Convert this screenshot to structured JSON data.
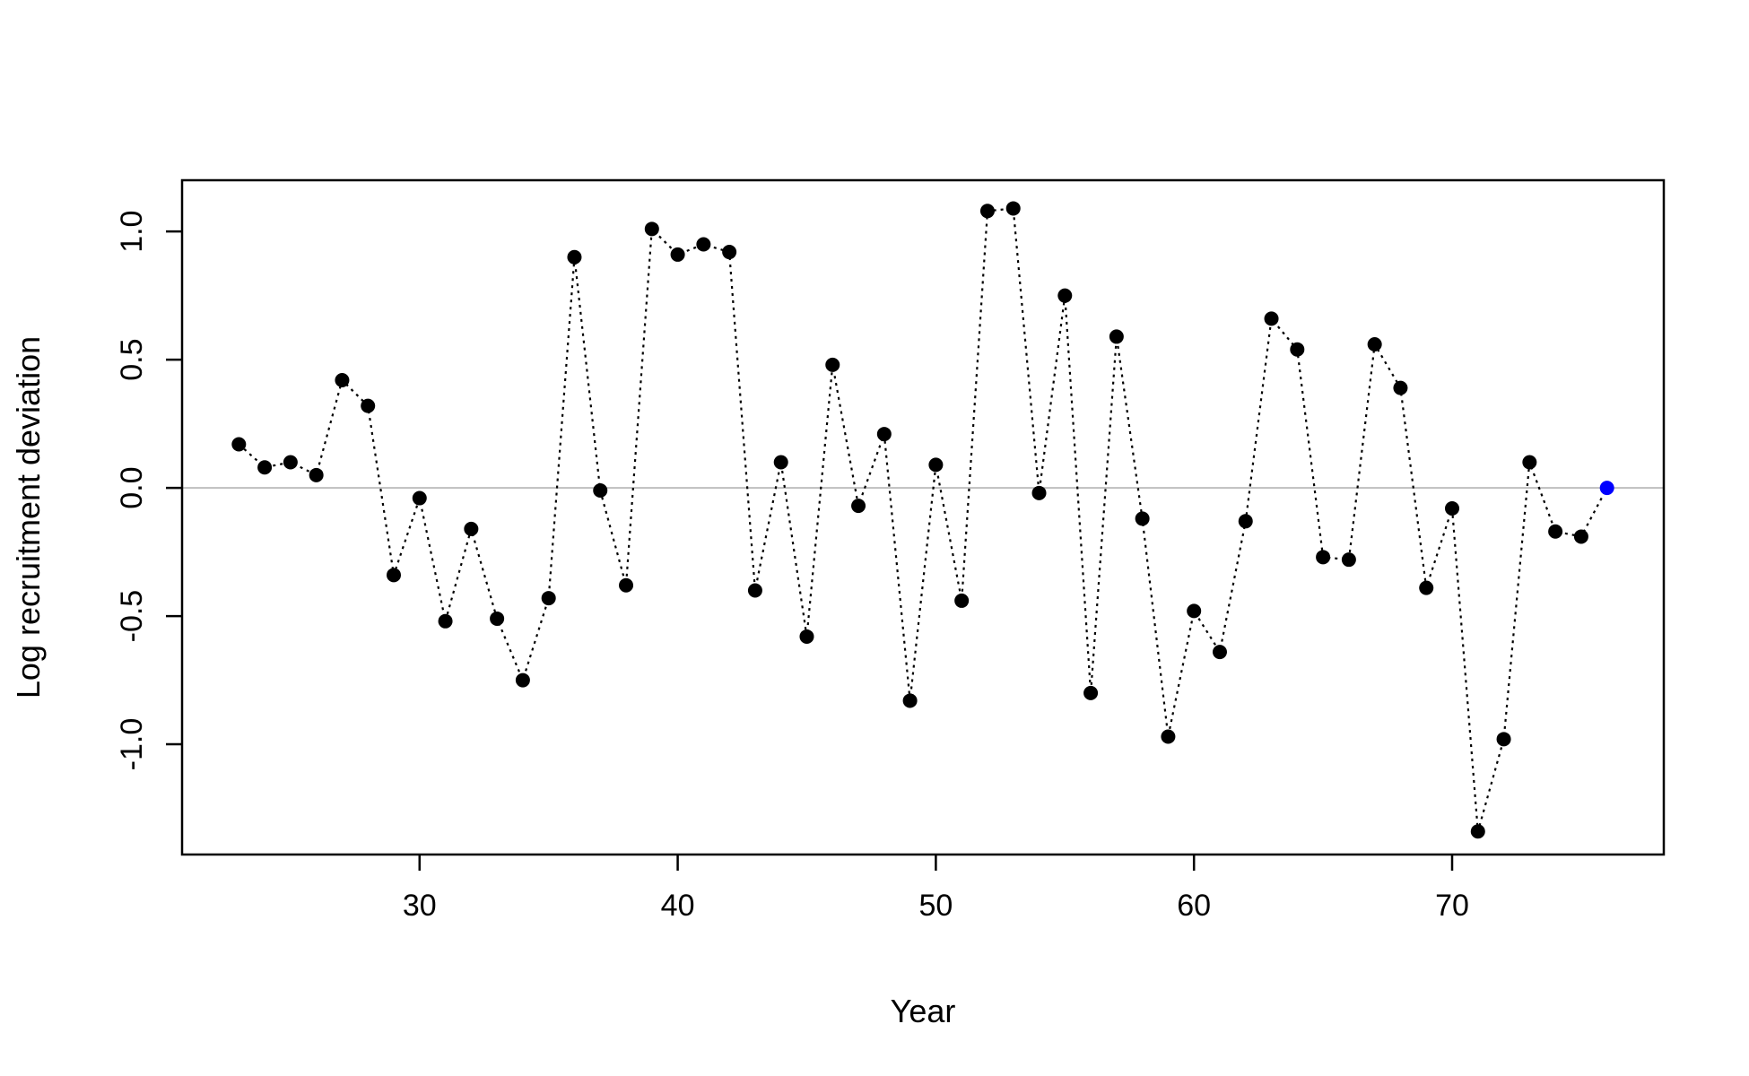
{
  "chart_data": {
    "type": "scatter",
    "title": "",
    "xlabel": "Year",
    "ylabel": "Log recruitment deviation",
    "xlim": [
      20.8,
      78.2
    ],
    "ylim": [
      -1.43,
      1.2
    ],
    "x_ticks": [
      30,
      40,
      50,
      60,
      70
    ],
    "x_tick_labels": [
      "30",
      "40",
      "50",
      "60",
      "70"
    ],
    "y_ticks": [
      -1.0,
      -0.5,
      0.0,
      0.5,
      1.0
    ],
    "y_tick_labels": [
      "-1.0",
      "-0.5",
      "0.0",
      "0.5",
      "1.0"
    ],
    "reference_line": 0.0,
    "reference_line_color": "#bebebe",
    "line_style": "dotted",
    "grid": false,
    "series": [
      {
        "color": "#000000",
        "x": [
          23,
          24,
          25,
          26,
          27,
          28,
          29,
          30,
          31,
          32,
          33,
          34,
          35,
          36,
          37,
          38,
          39,
          40,
          41,
          42,
          43,
          44,
          45,
          46,
          47,
          48,
          49,
          50,
          51,
          52,
          53,
          54,
          55,
          56,
          57,
          58,
          59,
          60,
          61,
          62,
          63,
          64,
          65,
          66,
          67,
          68,
          69,
          70,
          71,
          72,
          73,
          74,
          75
        ],
        "y": [
          0.17,
          0.08,
          0.1,
          0.05,
          0.42,
          0.32,
          -0.34,
          -0.04,
          -0.52,
          -0.16,
          -0.51,
          -0.75,
          -0.43,
          0.9,
          -0.01,
          -0.38,
          1.01,
          0.91,
          0.95,
          0.92,
          -0.4,
          0.1,
          -0.58,
          0.48,
          -0.07,
          0.21,
          -0.83,
          0.09,
          -0.44,
          1.08,
          1.09,
          -0.02,
          0.75,
          -0.8,
          0.59,
          -0.12,
          -0.97,
          -0.48,
          -0.64,
          -0.13,
          0.66,
          0.54,
          -0.27,
          -0.28,
          0.56,
          0.39,
          -0.39,
          -0.08,
          -1.34,
          -0.98,
          0.1,
          -0.17,
          -0.19
        ]
      },
      {
        "color": "#0000ff",
        "x": [
          76
        ],
        "y": [
          0.0
        ]
      }
    ]
  }
}
